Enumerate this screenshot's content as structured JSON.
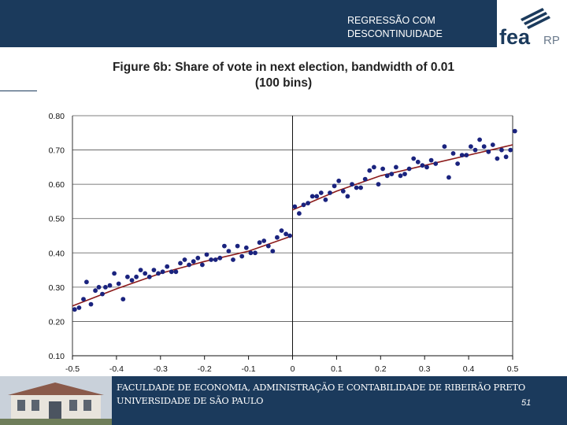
{
  "header": {
    "title_line1": "REGRESSÃO COM",
    "title_line2": "DESCONTINUIDADE",
    "logo_text": "fea",
    "logo_suffix": "RP"
  },
  "figure": {
    "title_line1": "Figure 6b: Share of vote in next election, bandwidth of 0.01",
    "title_line2": "(100 bins)"
  },
  "footer": {
    "line1": "FACULDADE DE ECONOMIA, ADMINISTRAÇÃO E CONTABILIDADE DE RIBEIRÃO PRETO",
    "line2": "UNIVERSIDADE DE SÃO PAULO",
    "page_number": "51"
  },
  "colors": {
    "navy": "#1b3a5c",
    "points": "#1a237e",
    "fit_line": "#8b1a1a"
  },
  "chart_data": {
    "type": "scatter",
    "title": "Figure 6b: Share of vote in next election, bandwidth of 0.01",
    "subtitle": "(100 bins)",
    "xlabel": "",
    "ylabel": "",
    "xlim": [
      -0.5,
      0.5
    ],
    "ylim": [
      0.1,
      0.8
    ],
    "x_ticks": [
      "-0.5",
      "-0.4",
      "-0.3",
      "-0.2",
      "-0.1",
      "0",
      "0.1",
      "0.2",
      "0.3",
      "0.4",
      "0.5"
    ],
    "y_ticks": [
      "0.10",
      "0.20",
      "0.30",
      "0.40",
      "0.50",
      "0.60",
      "0.70",
      "0.80"
    ],
    "grid": "horizontal",
    "cutoff": 0,
    "series": [
      {
        "values": [
          [
            -0.495,
            0.235
          ],
          [
            -0.485,
            0.24
          ],
          [
            -0.475,
            0.265
          ],
          [
            -0.468,
            0.315
          ],
          [
            -0.458,
            0.25
          ],
          [
            -0.448,
            0.29
          ],
          [
            -0.44,
            0.3
          ],
          [
            -0.432,
            0.28
          ],
          [
            -0.425,
            0.3
          ],
          [
            -0.415,
            0.305
          ],
          [
            -0.405,
            0.34
          ],
          [
            -0.395,
            0.31
          ],
          [
            -0.385,
            0.265
          ],
          [
            -0.375,
            0.33
          ],
          [
            -0.365,
            0.32
          ],
          [
            -0.355,
            0.33
          ],
          [
            -0.345,
            0.35
          ],
          [
            -0.335,
            0.34
          ],
          [
            -0.325,
            0.33
          ],
          [
            -0.315,
            0.35
          ],
          [
            -0.305,
            0.34
          ],
          [
            -0.295,
            0.345
          ],
          [
            -0.285,
            0.36
          ],
          [
            -0.275,
            0.345
          ],
          [
            -0.265,
            0.345
          ],
          [
            -0.255,
            0.37
          ],
          [
            -0.245,
            0.38
          ],
          [
            -0.235,
            0.365
          ],
          [
            -0.225,
            0.375
          ],
          [
            -0.215,
            0.385
          ],
          [
            -0.205,
            0.365
          ],
          [
            -0.195,
            0.395
          ],
          [
            -0.185,
            0.38
          ],
          [
            -0.175,
            0.38
          ],
          [
            -0.165,
            0.385
          ],
          [
            -0.155,
            0.42
          ],
          [
            -0.145,
            0.405
          ],
          [
            -0.135,
            0.38
          ],
          [
            -0.125,
            0.42
          ],
          [
            -0.115,
            0.39
          ],
          [
            -0.105,
            0.415
          ],
          [
            -0.095,
            0.4
          ],
          [
            -0.085,
            0.4
          ],
          [
            -0.075,
            0.43
          ],
          [
            -0.065,
            0.435
          ],
          [
            -0.055,
            0.42
          ],
          [
            -0.045,
            0.405
          ],
          [
            -0.035,
            0.445
          ],
          [
            -0.025,
            0.465
          ],
          [
            -0.015,
            0.455
          ],
          [
            -0.006,
            0.45
          ],
          [
            0.005,
            0.535
          ],
          [
            0.015,
            0.515
          ],
          [
            0.025,
            0.54
          ],
          [
            0.035,
            0.545
          ],
          [
            0.045,
            0.565
          ],
          [
            0.055,
            0.565
          ],
          [
            0.065,
            0.575
          ],
          [
            0.075,
            0.555
          ],
          [
            0.085,
            0.575
          ],
          [
            0.095,
            0.595
          ],
          [
            0.105,
            0.61
          ],
          [
            0.115,
            0.58
          ],
          [
            0.125,
            0.565
          ],
          [
            0.135,
            0.6
          ],
          [
            0.145,
            0.59
          ],
          [
            0.155,
            0.59
          ],
          [
            0.165,
            0.615
          ],
          [
            0.175,
            0.64
          ],
          [
            0.185,
            0.65
          ],
          [
            0.195,
            0.6
          ],
          [
            0.205,
            0.645
          ],
          [
            0.215,
            0.625
          ],
          [
            0.225,
            0.63
          ],
          [
            0.235,
            0.65
          ],
          [
            0.245,
            0.625
          ],
          [
            0.255,
            0.63
          ],
          [
            0.265,
            0.645
          ],
          [
            0.275,
            0.675
          ],
          [
            0.285,
            0.665
          ],
          [
            0.295,
            0.655
          ],
          [
            0.305,
            0.65
          ],
          [
            0.315,
            0.67
          ],
          [
            0.325,
            0.66
          ],
          [
            0.345,
            0.71
          ],
          [
            0.355,
            0.62
          ],
          [
            0.365,
            0.69
          ],
          [
            0.375,
            0.66
          ],
          [
            0.385,
            0.685
          ],
          [
            0.395,
            0.685
          ],
          [
            0.405,
            0.71
          ],
          [
            0.415,
            0.7
          ],
          [
            0.425,
            0.73
          ],
          [
            0.435,
            0.71
          ],
          [
            0.445,
            0.695
          ],
          [
            0.455,
            0.715
          ],
          [
            0.465,
            0.675
          ],
          [
            0.475,
            0.7
          ],
          [
            0.485,
            0.68
          ],
          [
            0.495,
            0.7
          ],
          [
            0.505,
            0.755
          ]
        ]
      }
    ],
    "fit_left": [
      [
        -0.5,
        0.245
      ],
      [
        -0.4,
        0.295
      ],
      [
        -0.3,
        0.34
      ],
      [
        -0.2,
        0.375
      ],
      [
        -0.1,
        0.405
      ],
      [
        0.0,
        0.45
      ]
    ],
    "fit_right": [
      [
        0.0,
        0.525
      ],
      [
        0.1,
        0.58
      ],
      [
        0.2,
        0.625
      ],
      [
        0.3,
        0.655
      ],
      [
        0.4,
        0.685
      ],
      [
        0.5,
        0.715
      ]
    ]
  }
}
